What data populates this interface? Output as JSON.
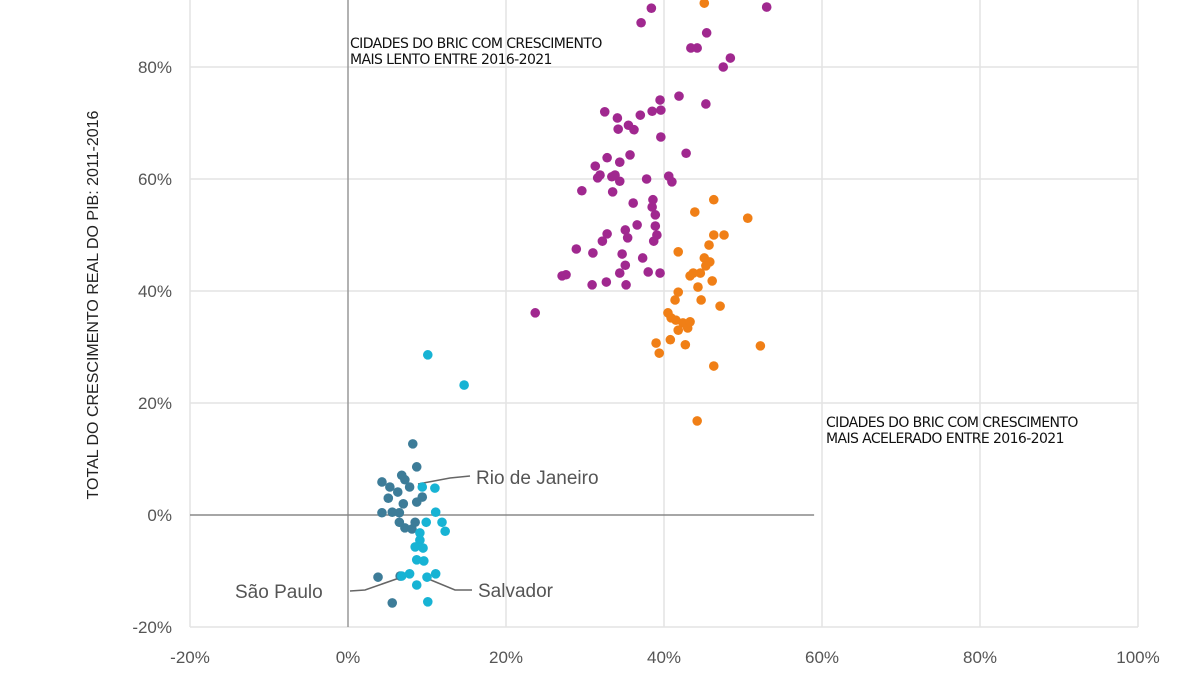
{
  "chart_data": {
    "type": "scatter",
    "title": "",
    "xlabel": "",
    "ylabel": "TOTAL DO CRESCIMENTO REAL DO PIB: 2011-2016",
    "xlim": [
      -20,
      100
    ],
    "ylim": [
      -20,
      95
    ],
    "x_ticks": [
      -20,
      0,
      20,
      40,
      60,
      80,
      100
    ],
    "x_tick_labels": [
      "-20%",
      "0%",
      "20%",
      "40%",
      "60%",
      "80%",
      "100%"
    ],
    "y_ticks": [
      -20,
      0,
      20,
      40,
      60,
      80
    ],
    "y_tick_labels": [
      "-20%",
      "0%",
      "20%",
      "40%",
      "60%",
      "80%"
    ],
    "grid": true,
    "annotations": {
      "slow": [
        "CIDADES DO BRIC COM CRESCIMENTO",
        "MAIS LENTO ENTRE 2016-2021"
      ],
      "fast": [
        "CIDADES DO BRIC COM CRESCIMENTO",
        "MAIS ACELERADO ENTRE 2016-2021"
      ],
      "rio": "Rio de Janeiro",
      "salvador": "Salvador",
      "sao_paulo": "São Paulo"
    },
    "series": [
      {
        "name": "purple",
        "color": "#a0288f",
        "points": [
          [
            37.1,
            87.9
          ],
          [
            53.0,
            90.7
          ],
          [
            23.7,
            36.1
          ],
          [
            27.1,
            42.7
          ],
          [
            27.6,
            42.9
          ],
          [
            30.9,
            41.1
          ],
          [
            32.7,
            41.6
          ],
          [
            28.9,
            47.5
          ],
          [
            31.0,
            46.8
          ],
          [
            32.2,
            48.9
          ],
          [
            34.7,
            46.6
          ],
          [
            34.4,
            43.2
          ],
          [
            35.2,
            41.1
          ],
          [
            35.1,
            44.6
          ],
          [
            37.3,
            45.9
          ],
          [
            35.4,
            49.5
          ],
          [
            35.1,
            50.9
          ],
          [
            32.8,
            50.2
          ],
          [
            36.6,
            51.8
          ],
          [
            38.9,
            51.6
          ],
          [
            39.1,
            50.0
          ],
          [
            38.7,
            48.9
          ],
          [
            38.0,
            43.4
          ],
          [
            39.5,
            43.2
          ],
          [
            38.9,
            53.6
          ],
          [
            38.5,
            55.0
          ],
          [
            38.6,
            56.3
          ],
          [
            36.1,
            55.7
          ],
          [
            34.4,
            59.6
          ],
          [
            33.4,
            60.4
          ],
          [
            33.5,
            57.7
          ],
          [
            33.8,
            60.7
          ],
          [
            31.9,
            60.7
          ],
          [
            31.6,
            60.2
          ],
          [
            31.3,
            62.3
          ],
          [
            32.8,
            63.8
          ],
          [
            34.4,
            63.0
          ],
          [
            35.7,
            64.3
          ],
          [
            29.6,
            57.9
          ],
          [
            37.8,
            60.0
          ],
          [
            41.0,
            59.5
          ],
          [
            40.6,
            60.5
          ],
          [
            42.8,
            64.6
          ],
          [
            39.6,
            67.5
          ],
          [
            38.5,
            72.1
          ],
          [
            39.5,
            74.1
          ],
          [
            39.6,
            72.3
          ],
          [
            41.9,
            74.8
          ],
          [
            45.3,
            73.4
          ],
          [
            32.5,
            72.0
          ],
          [
            34.1,
            70.9
          ],
          [
            35.5,
            69.6
          ],
          [
            36.2,
            68.8
          ],
          [
            37.0,
            71.4
          ],
          [
            34.2,
            68.9
          ],
          [
            43.4,
            83.4
          ],
          [
            44.2,
            83.4
          ],
          [
            47.5,
            80.0
          ],
          [
            48.4,
            81.6
          ],
          [
            45.4,
            86.1
          ],
          [
            38.4,
            90.5
          ]
        ]
      },
      {
        "name": "orange",
        "color": "#f07f16",
        "points": [
          [
            45.1,
            91.4
          ],
          [
            46.3,
            56.3
          ],
          [
            43.9,
            54.1
          ],
          [
            50.6,
            53.0
          ],
          [
            47.6,
            50.0
          ],
          [
            46.3,
            50.0
          ],
          [
            41.8,
            47.0
          ],
          [
            45.7,
            48.2
          ],
          [
            45.1,
            45.9
          ],
          [
            45.8,
            45.2
          ],
          [
            45.3,
            44.5
          ],
          [
            44.6,
            43.2
          ],
          [
            46.1,
            41.8
          ],
          [
            43.7,
            43.2
          ],
          [
            43.3,
            42.7
          ],
          [
            44.3,
            40.7
          ],
          [
            41.8,
            39.8
          ],
          [
            41.4,
            38.4
          ],
          [
            44.7,
            38.4
          ],
          [
            47.1,
            37.3
          ],
          [
            40.5,
            36.1
          ],
          [
            40.9,
            35.2
          ],
          [
            41.5,
            34.8
          ],
          [
            42.4,
            34.3
          ],
          [
            43.0,
            33.4
          ],
          [
            41.8,
            33.0
          ],
          [
            43.3,
            34.5
          ],
          [
            40.8,
            31.3
          ],
          [
            39.0,
            30.7
          ],
          [
            39.4,
            28.9
          ],
          [
            42.7,
            30.4
          ],
          [
            46.3,
            26.6
          ],
          [
            52.2,
            30.2
          ],
          [
            44.2,
            16.8
          ]
        ]
      },
      {
        "name": "dark-teal",
        "color": "#3d7c98",
        "points": [
          [
            8.2,
            12.7
          ],
          [
            8.7,
            8.6
          ],
          [
            4.3,
            5.9
          ],
          [
            5.3,
            5.0
          ],
          [
            6.8,
            7.1
          ],
          [
            7.2,
            6.3
          ],
          [
            6.3,
            4.1
          ],
          [
            7.8,
            5.0
          ],
          [
            9.4,
            3.2
          ],
          [
            8.7,
            2.3
          ],
          [
            5.1,
            3.0
          ],
          [
            7.0,
            2.0
          ],
          [
            4.3,
            0.4
          ],
          [
            5.6,
            0.5
          ],
          [
            6.5,
            0.4
          ],
          [
            6.5,
            -1.3
          ],
          [
            7.2,
            -2.3
          ],
          [
            8.1,
            -2.5
          ],
          [
            8.5,
            -1.3
          ],
          [
            3.8,
            -11.1
          ],
          [
            5.6,
            -15.7
          ],
          [
            6.6,
            -10.9
          ]
        ]
      },
      {
        "name": "light-teal",
        "color": "#17b3d4",
        "points": [
          [
            10.1,
            28.6
          ],
          [
            14.7,
            23.2
          ],
          [
            11.0,
            4.8
          ],
          [
            11.1,
            0.5
          ],
          [
            11.9,
            -1.3
          ],
          [
            12.3,
            -2.9
          ],
          [
            9.9,
            -1.3
          ],
          [
            9.1,
            -3.2
          ],
          [
            9.1,
            -4.5
          ],
          [
            8.5,
            -5.7
          ],
          [
            9.5,
            -5.9
          ],
          [
            8.7,
            -8.0
          ],
          [
            9.6,
            -8.2
          ],
          [
            6.8,
            -10.9
          ],
          [
            7.8,
            -10.5
          ],
          [
            8.7,
            -12.5
          ],
          [
            10.0,
            -11.1
          ],
          [
            11.1,
            -10.5
          ],
          [
            10.1,
            -15.5
          ],
          [
            9.4,
            5.0
          ]
        ]
      }
    ]
  }
}
